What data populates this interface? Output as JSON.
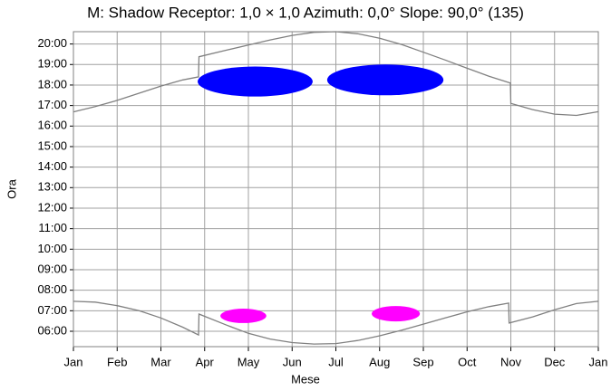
{
  "chart_data": {
    "type": "line",
    "title": "M: Shadow Receptor: 1,0 × 1,0  Azimuth: 0,0°  Slope: 90,0° (135)",
    "xlabel": "Mese",
    "ylabel": "Ora",
    "xlim": [
      0,
      12
    ],
    "xticks": [
      {
        "value": 0,
        "label": "Jan"
      },
      {
        "value": 1,
        "label": "Feb"
      },
      {
        "value": 2,
        "label": "Mar"
      },
      {
        "value": 3,
        "label": "Apr"
      },
      {
        "value": 4,
        "label": "May"
      },
      {
        "value": 5,
        "label": "Jun"
      },
      {
        "value": 6,
        "label": "Jul"
      },
      {
        "value": 7,
        "label": "Aug"
      },
      {
        "value": 8,
        "label": "Sep"
      },
      {
        "value": 9,
        "label": "Oct"
      },
      {
        "value": 10,
        "label": "Nov"
      },
      {
        "value": 11,
        "label": "Dec"
      },
      {
        "value": 12,
        "label": "Jan"
      }
    ],
    "ylim": [
      5.25,
      20.6
    ],
    "yticks": [
      {
        "value": 6,
        "label": "06:00"
      },
      {
        "value": 7,
        "label": "07:00"
      },
      {
        "value": 8,
        "label": "08:00"
      },
      {
        "value": 9,
        "label": "09:00"
      },
      {
        "value": 10,
        "label": "10:00"
      },
      {
        "value": 11,
        "label": "11:00"
      },
      {
        "value": 12,
        "label": "12:00"
      },
      {
        "value": 13,
        "label": "13:00"
      },
      {
        "value": 14,
        "label": "14:00"
      },
      {
        "value": 15,
        "label": "15:00"
      },
      {
        "value": 16,
        "label": "16:00"
      },
      {
        "value": 17,
        "label": "17:00"
      },
      {
        "value": 18,
        "label": "18:00"
      },
      {
        "value": 19,
        "label": "19:00"
      },
      {
        "value": 20,
        "label": "20:00"
      }
    ],
    "grid": true,
    "series": [
      {
        "color": "#808080",
        "x": [
          0,
          0.5,
          1,
          1.5,
          2,
          2.5,
          2.86,
          2.87,
          3.5,
          4,
          4.5,
          5,
          5.5,
          6,
          6.5,
          7,
          7.5,
          8,
          8.5,
          9,
          9.5,
          9.99,
          10,
          10.5,
          11,
          11.5,
          12
        ],
        "values": [
          16.69,
          16.95,
          17.25,
          17.6,
          17.95,
          18.25,
          18.4,
          19.38,
          19.7,
          19.95,
          20.2,
          20.42,
          20.57,
          20.6,
          20.5,
          20.28,
          19.98,
          19.6,
          19.22,
          18.82,
          18.43,
          18.1,
          17.1,
          16.8,
          16.58,
          16.52,
          16.7
        ]
      },
      {
        "color": "#808080",
        "x": [
          0,
          0.5,
          1,
          1.5,
          2,
          2.5,
          2.86,
          2.87,
          3.5,
          4,
          4.5,
          5,
          5.5,
          6,
          6.5,
          7,
          7.5,
          8,
          8.5,
          9,
          9.5,
          9.95,
          9.96,
          10.5,
          11,
          11.5,
          12
        ],
        "values": [
          7.46,
          7.42,
          7.25,
          7.0,
          6.65,
          6.2,
          5.82,
          6.84,
          6.3,
          5.9,
          5.62,
          5.45,
          5.38,
          5.4,
          5.55,
          5.78,
          6.05,
          6.35,
          6.65,
          6.95,
          7.2,
          7.37,
          6.4,
          6.7,
          7.05,
          7.35,
          7.46
        ]
      }
    ],
    "shadows": [
      {
        "color": "#0000ff",
        "x": [
          2.84,
          5.47
        ],
        "y": [
          17.44,
          18.9
        ]
      },
      {
        "color": "#0000ff",
        "x": [
          5.8,
          8.46
        ],
        "y": [
          17.5,
          19.0
        ]
      },
      {
        "color": "#ff00ff",
        "x": [
          3.36,
          4.41
        ],
        "y": [
          6.4,
          7.1
        ]
      },
      {
        "color": "#ff00ff",
        "x": [
          6.82,
          7.92
        ],
        "y": [
          6.48,
          7.23
        ]
      }
    ]
  }
}
